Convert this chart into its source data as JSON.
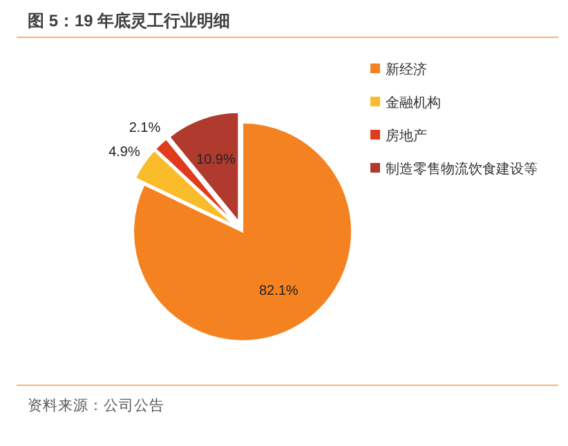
{
  "chart_data": {
    "type": "pie",
    "title": "图 5：19 年底灵工行业明细",
    "categories": [
      "新经济",
      "金融机构",
      "房地产",
      "制造零售物流饮食建设等"
    ],
    "values": [
      82.1,
      4.9,
      2.1,
      10.9
    ],
    "colors": [
      "#f58220",
      "#fbbc2c",
      "#e03c1c",
      "#b03a2e"
    ],
    "value_labels": [
      "82.1%",
      "4.9%",
      "2.1%",
      "10.9%"
    ],
    "legend": "right",
    "annotations": [
      "资料来源：公司公告"
    ]
  }
}
